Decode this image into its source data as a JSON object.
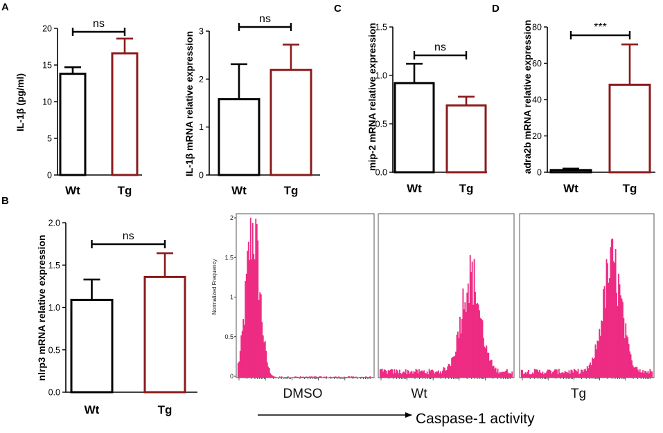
{
  "colors": {
    "wt": "#000000",
    "tg": "#8b1a1a",
    "flow": "#ee2c84"
  },
  "panel_labels": {
    "a": "A",
    "b": "B",
    "c": "C",
    "d": "D"
  },
  "chart_data": [
    {
      "id": "A1",
      "type": "bar",
      "ylabel": "IL-1β (pg/ml)",
      "categories": [
        "Wt",
        "Tg"
      ],
      "values": [
        13.8,
        16.6
      ],
      "errors": [
        0.9,
        2.0
      ],
      "ylim": [
        0,
        20
      ],
      "yticks": [
        "0",
        "5",
        "10",
        "15",
        "20"
      ],
      "significance": "ns"
    },
    {
      "id": "A2",
      "type": "bar",
      "ylabel": "IL-1β mRNA relative expression",
      "categories": [
        "Wt",
        "Tg"
      ],
      "values": [
        1.58,
        2.19
      ],
      "errors": [
        0.73,
        0.53
      ],
      "ylim": [
        0,
        3
      ],
      "yticks": [
        "0",
        "1",
        "2",
        "3"
      ],
      "significance": "ns"
    },
    {
      "id": "C",
      "type": "bar",
      "ylabel": "mip-2 mRNA relative expression",
      "categories": [
        "Wt",
        "Tg"
      ],
      "values": [
        0.92,
        0.69
      ],
      "errors": [
        0.2,
        0.09
      ],
      "ylim": [
        0,
        1.5
      ],
      "yticks": [
        "0.0",
        "0.5",
        "1.0",
        "1.5"
      ],
      "significance": "ns"
    },
    {
      "id": "D",
      "type": "bar",
      "ylabel": "adra2b mRNA relative expression",
      "categories": [
        "Wt",
        "Tg"
      ],
      "values": [
        1.2,
        48.2
      ],
      "errors": [
        0.8,
        22.2
      ],
      "ylim": [
        0,
        80
      ],
      "yticks": [
        "0",
        "20",
        "40",
        "60",
        "80"
      ],
      "significance": "***"
    },
    {
      "id": "B",
      "type": "bar",
      "ylabel": "nlrp3 mRNA relative expression",
      "categories": [
        "Wt",
        "Tg"
      ],
      "values": [
        1.09,
        1.36
      ],
      "errors": [
        0.24,
        0.28
      ],
      "ylim": [
        0,
        2.0
      ],
      "yticks": [
        "0.0",
        "0.5",
        "1.0",
        "1.5",
        "2.0"
      ],
      "significance": "ns"
    },
    {
      "id": "flow",
      "type": "histogram",
      "ylabel": "Normalized Frequency",
      "yticks": [
        "0",
        "0.5",
        "1",
        "1.5",
        "2"
      ],
      "ylim": [
        0,
        2
      ],
      "xlabel": "Caspase-1 activity",
      "series": [
        {
          "name": "DMSO",
          "peak_position": 0.11,
          "peak_height": 2.0,
          "spread": 0.05
        },
        {
          "name": "Wt",
          "peak_position": 0.68,
          "peak_height": 1.3,
          "spread": 0.07
        },
        {
          "name": "Tg",
          "peak_position": 0.69,
          "peak_height": 1.45,
          "spread": 0.07
        }
      ]
    }
  ]
}
